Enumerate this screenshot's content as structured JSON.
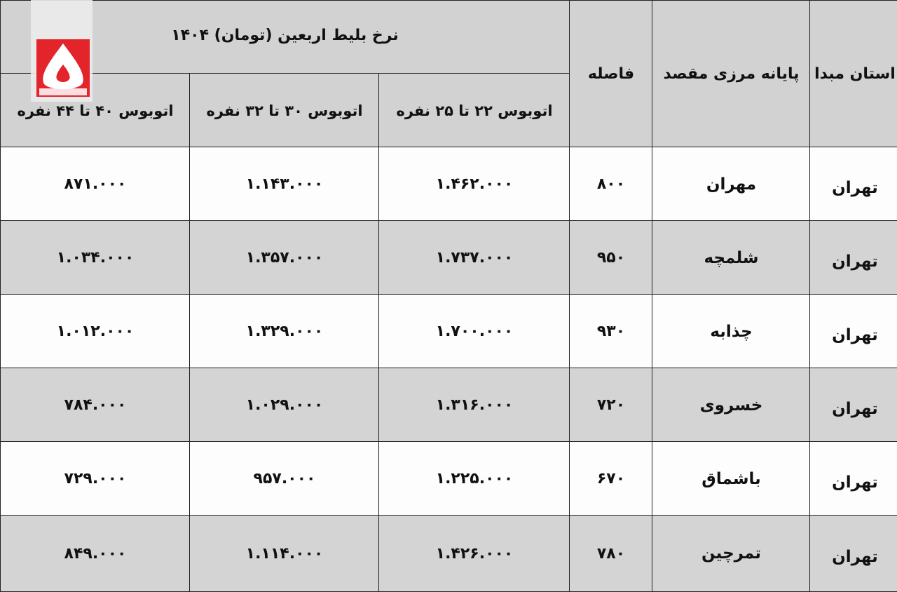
{
  "table": {
    "title": "نرخ بلیط اربعین (تومان) ۱۴۰۴",
    "headers": {
      "origin": "استان مبدا",
      "destination": "پایانه مرزی مقصد",
      "distance": "فاصله",
      "bus_22_25": "اتوبوس ۲۲ تا ۲۵ نفره",
      "bus_30_32": "اتوبوس ۳۰ تا ۳۲ نفره",
      "bus_40_44": "اتوبوس ۴۰ تا ۴۴ نفره"
    },
    "rows": [
      {
        "origin": "تهران",
        "destination": "مهران",
        "distance": "۸۰۰",
        "bus_22_25": "۱.۴۶۲.۰۰۰",
        "bus_30_32": "۱.۱۴۳.۰۰۰",
        "bus_40_44": "۸۷۱.۰۰۰"
      },
      {
        "origin": "تهران",
        "destination": "شلمچه",
        "distance": "۹۵۰",
        "bus_22_25": "۱.۷۳۷.۰۰۰",
        "bus_30_32": "۱.۳۵۷.۰۰۰",
        "bus_40_44": "۱.۰۳۴.۰۰۰"
      },
      {
        "origin": "تهران",
        "destination": "چذابه",
        "distance": "۹۳۰",
        "bus_22_25": "۱.۷۰۰.۰۰۰",
        "bus_30_32": "۱.۳۲۹.۰۰۰",
        "bus_40_44": "۱.۰۱۲.۰۰۰"
      },
      {
        "origin": "تهران",
        "destination": "خسروی",
        "distance": "۷۲۰",
        "bus_22_25": "۱.۳۱۶.۰۰۰",
        "bus_30_32": "۱.۰۲۹.۰۰۰",
        "bus_40_44": "۷۸۴.۰۰۰"
      },
      {
        "origin": "تهران",
        "destination": "باشماق",
        "distance": "۶۷۰",
        "bus_22_25": "۱.۲۲۵.۰۰۰",
        "bus_30_32": "۹۵۷.۰۰۰",
        "bus_40_44": "۷۲۹.۰۰۰"
      },
      {
        "origin": "تهران",
        "destination": "تمرچین",
        "distance": "۷۸۰",
        "bus_22_25": "۱.۴۲۶.۰۰۰",
        "bus_30_32": "۱.۱۱۴.۰۰۰",
        "bus_40_44": "۸۴۹.۰۰۰"
      }
    ]
  },
  "logo": {
    "text": "۵",
    "color": "#e3242b"
  }
}
